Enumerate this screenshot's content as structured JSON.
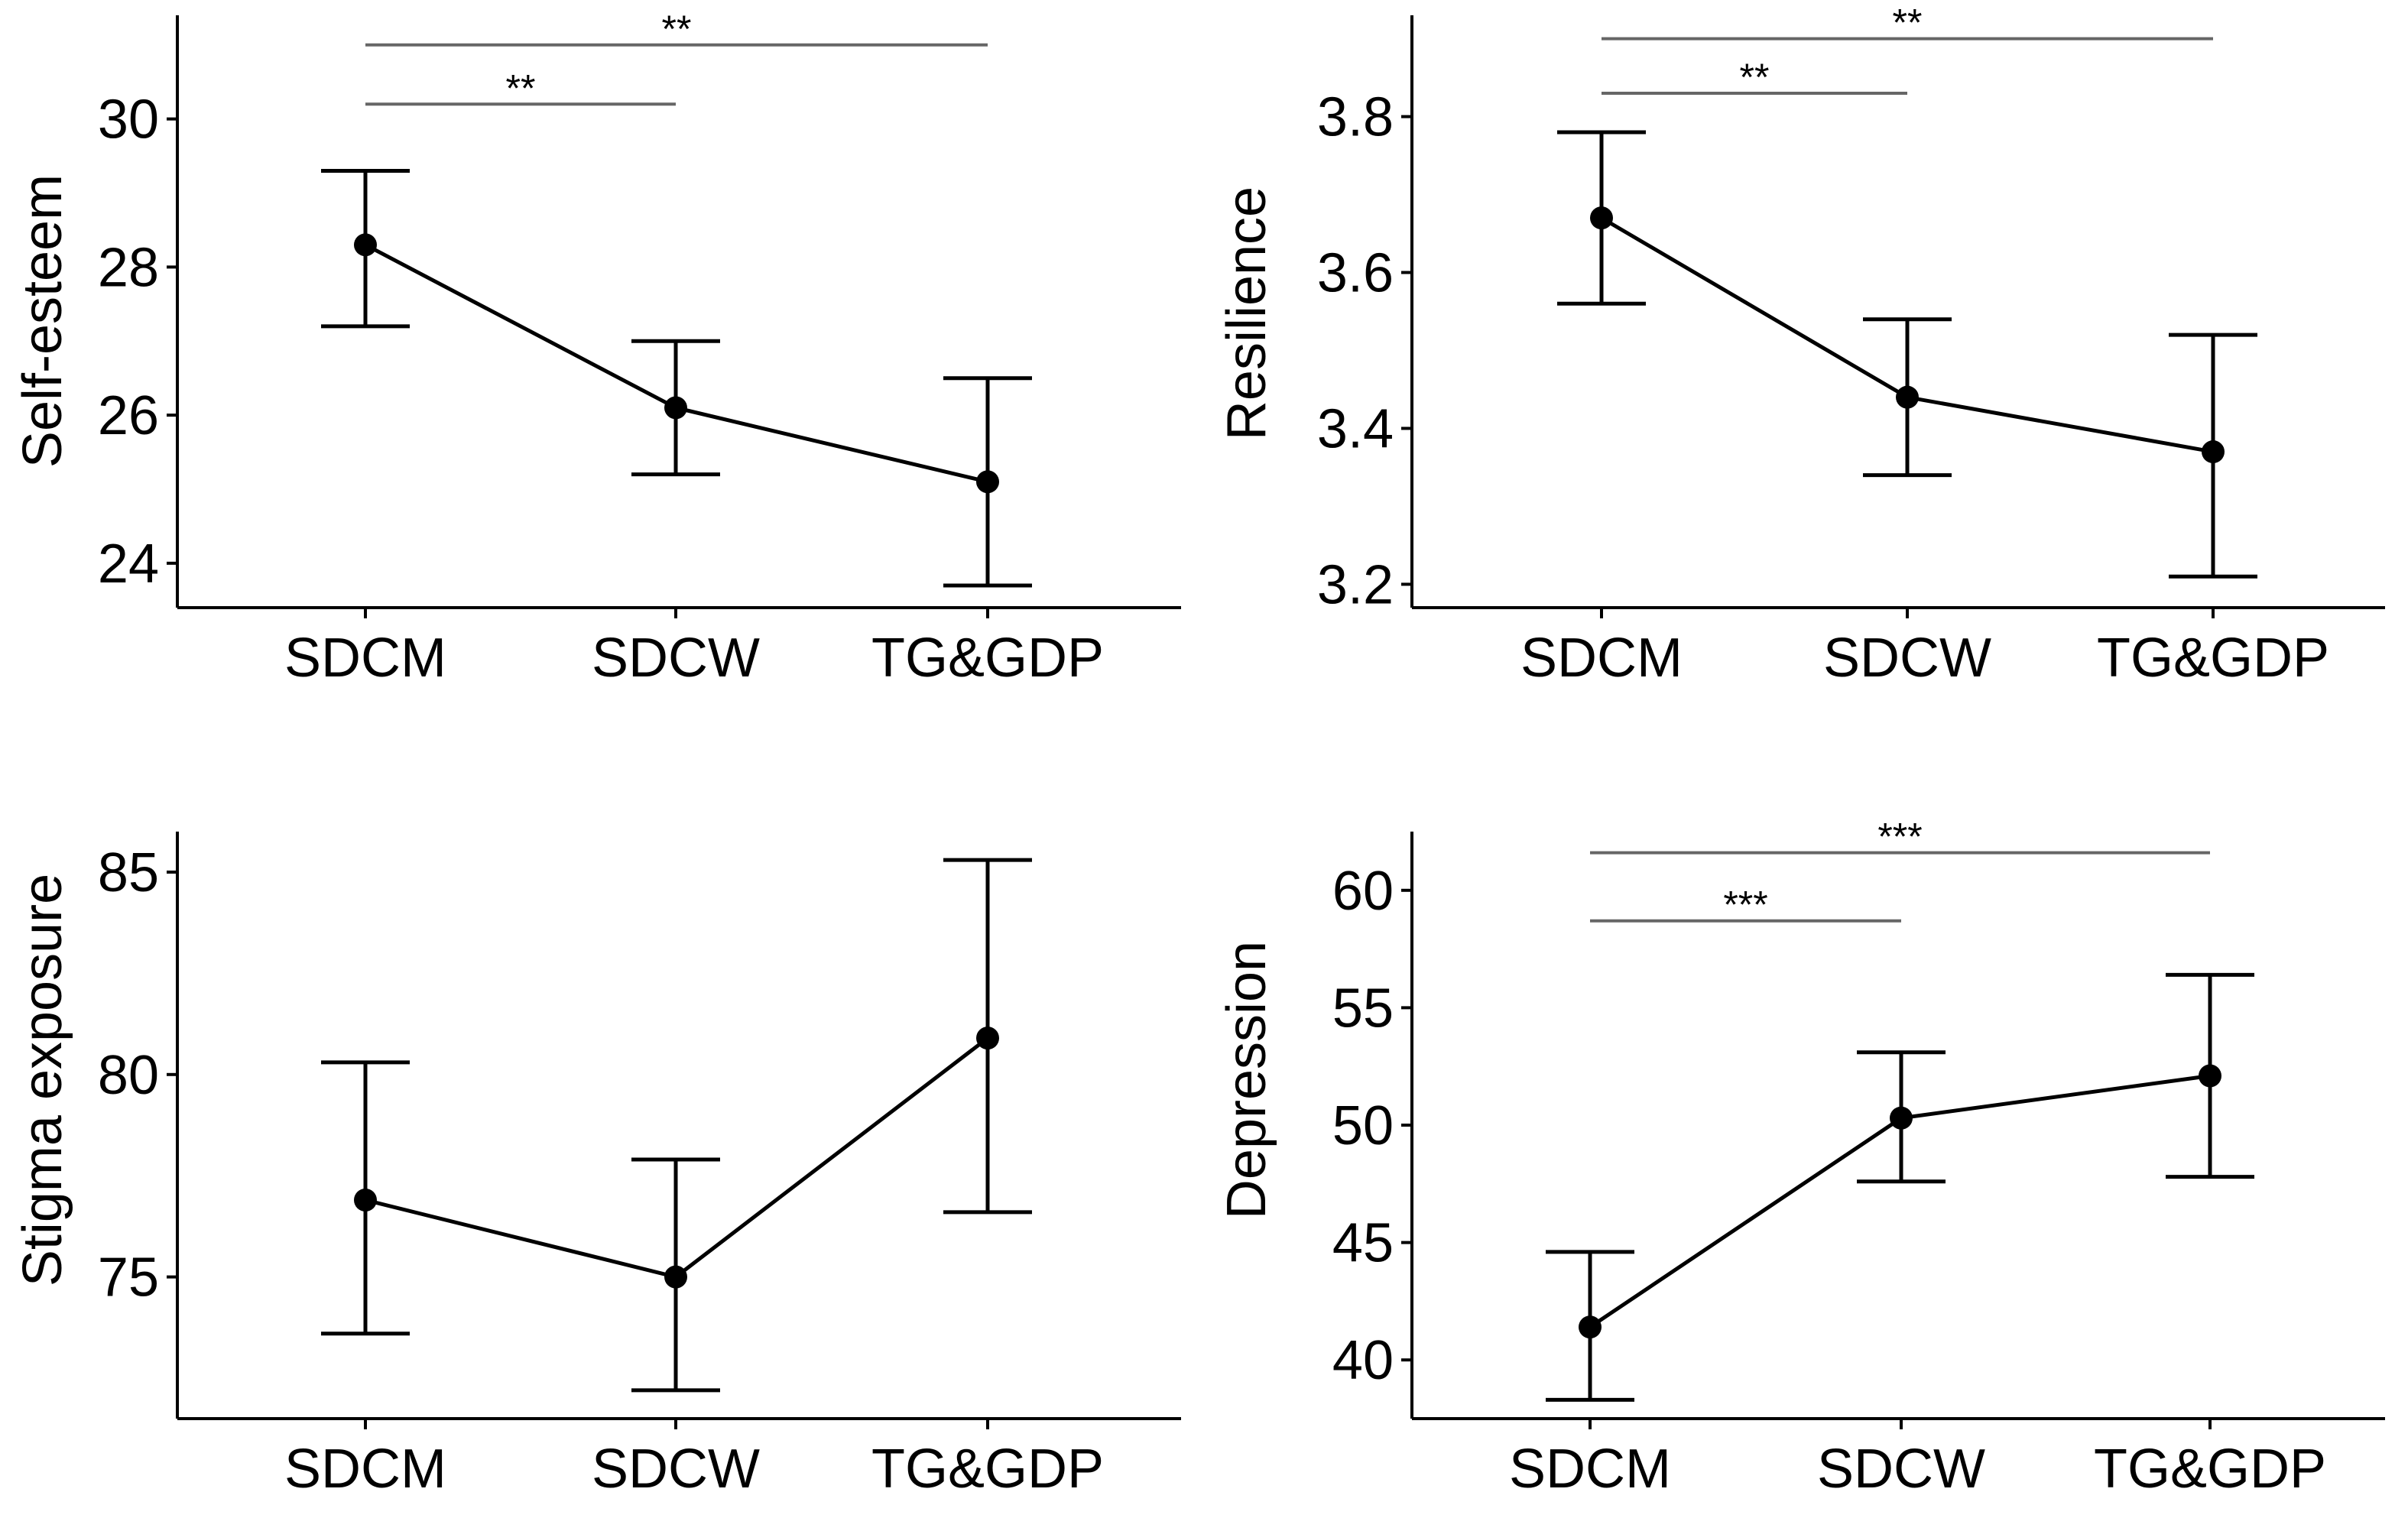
{
  "chart_data": [
    {
      "type": "line",
      "title": "",
      "xlabel": "",
      "ylabel": "Self-esteem",
      "categories": [
        "SDCM",
        "SDCW",
        "TG&GDP"
      ],
      "values": [
        28.3,
        26.1,
        25.1
      ],
      "error_low": [
        27.2,
        25.2,
        23.7
      ],
      "error_high": [
        29.3,
        27.0,
        26.5
      ],
      "ylim": [
        23.4,
        31.4
      ],
      "yticks": [
        24,
        26,
        28,
        30
      ],
      "significance": [
        {
          "from": "SDCM",
          "to": "SDCW",
          "label": "**",
          "y": 30.2
        },
        {
          "from": "SDCM",
          "to": "TG&GDP",
          "label": "**",
          "y": 31.0
        }
      ]
    },
    {
      "type": "line",
      "title": "",
      "xlabel": "",
      "ylabel": "Resilience",
      "categories": [
        "SDCM",
        "SDCW",
        "TG&GDP"
      ],
      "values": [
        3.67,
        3.44,
        3.37
      ],
      "error_low": [
        3.56,
        3.34,
        3.21
      ],
      "error_high": [
        3.78,
        3.54,
        3.52
      ],
      "ylim": [
        3.17,
        3.93
      ],
      "yticks": [
        3.2,
        3.4,
        3.6,
        3.8
      ],
      "significance": [
        {
          "from": "SDCM",
          "to": "SDCW",
          "label": "**",
          "y": 3.83
        },
        {
          "from": "SDCM",
          "to": "TG&GDP",
          "label": "**",
          "y": 3.9
        }
      ]
    },
    {
      "type": "line",
      "title": "",
      "xlabel": "",
      "ylabel": "Stigma exposure",
      "categories": [
        "SDCM",
        "SDCW",
        "TG&GDP"
      ],
      "values": [
        76.9,
        75.0,
        80.9
      ],
      "error_low": [
        73.6,
        72.2,
        76.6
      ],
      "error_high": [
        80.3,
        77.9,
        85.3
      ],
      "ylim": [
        71.5,
        86.0
      ],
      "yticks": [
        75,
        80,
        85
      ],
      "significance": []
    },
    {
      "type": "line",
      "title": "",
      "xlabel": "",
      "ylabel": "Depression",
      "categories": [
        "SDCM",
        "SDCW",
        "TG&GDP"
      ],
      "values": [
        41.4,
        50.3,
        52.1
      ],
      "error_low": [
        38.3,
        47.6,
        47.8
      ],
      "error_high": [
        44.6,
        53.1,
        56.4
      ],
      "ylim": [
        37.5,
        62.5
      ],
      "yticks": [
        40,
        45,
        50,
        55,
        60
      ],
      "significance": [
        {
          "from": "SDCM",
          "to": "SDCW",
          "label": "***",
          "y": 58.7
        },
        {
          "from": "SDCM",
          "to": "TG&GDP",
          "label": "***",
          "y": 61.6
        }
      ]
    }
  ]
}
